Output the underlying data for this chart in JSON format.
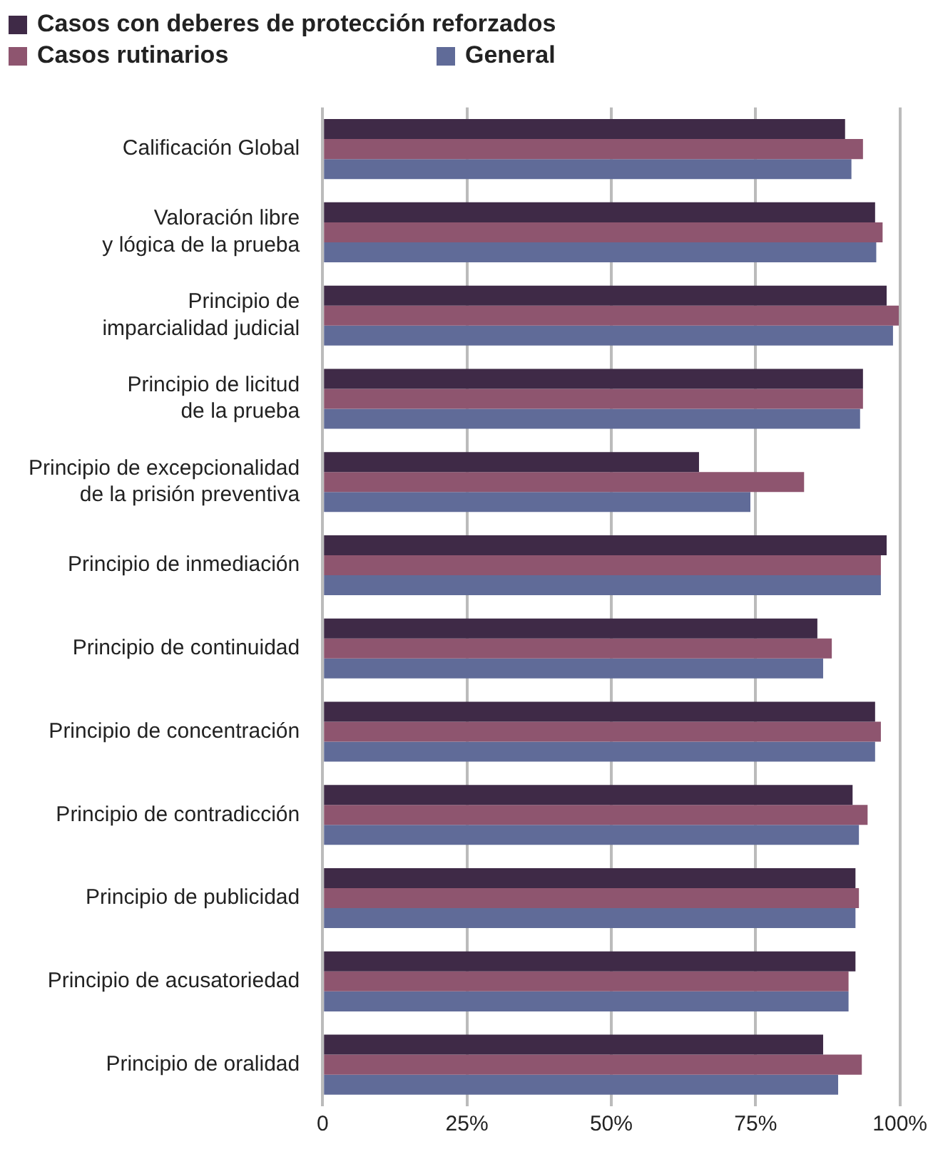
{
  "chart_data": {
    "type": "bar",
    "orientation": "horizontal",
    "categories": [
      "Calificación Global",
      "Valoración libre\ny lógica de la prueba",
      "Principio de\nimparcialidad judicial",
      "Principio de licitud\nde la prueba",
      "Principio de excepcionalidad\nde la prisión preventiva",
      "Principio de inmediación",
      "Principio de continuidad",
      "Principio de concentración",
      "Principio de contradicción",
      "Principio de publicidad",
      "Principio de acusatoriedad",
      "Principio de oralidad"
    ],
    "series": [
      {
        "name": "Casos con deberes de protección reforzados",
        "color": "#3f2a47",
        "values": [
          90.5,
          95.7,
          97.7,
          93.6,
          65.2,
          97.7,
          85.7,
          95.7,
          91.8,
          92.3,
          92.3,
          86.7
        ]
      },
      {
        "name": "Casos rutinarios",
        "color": "#8e556f",
        "values": [
          93.6,
          97,
          99.8,
          93.6,
          83.4,
          96.7,
          88.2,
          96.7,
          94.4,
          92.9,
          91.1,
          93.4
        ]
      },
      {
        "name": "General",
        "color": "#606b98",
        "values": [
          91.6,
          95.9,
          98.8,
          93.1,
          74.1,
          96.7,
          86.7,
          95.7,
          92.9,
          92.3,
          91.1,
          89.3
        ]
      }
    ],
    "xlim": [
      0,
      100
    ],
    "xticks": [
      {
        "value": 0,
        "label": "0"
      },
      {
        "value": 25,
        "label": "25%"
      },
      {
        "value": 50,
        "label": "50%"
      },
      {
        "value": 75,
        "label": "75%"
      },
      {
        "value": 100,
        "label": "100%"
      }
    ],
    "grid": "x",
    "legend": "top left"
  }
}
